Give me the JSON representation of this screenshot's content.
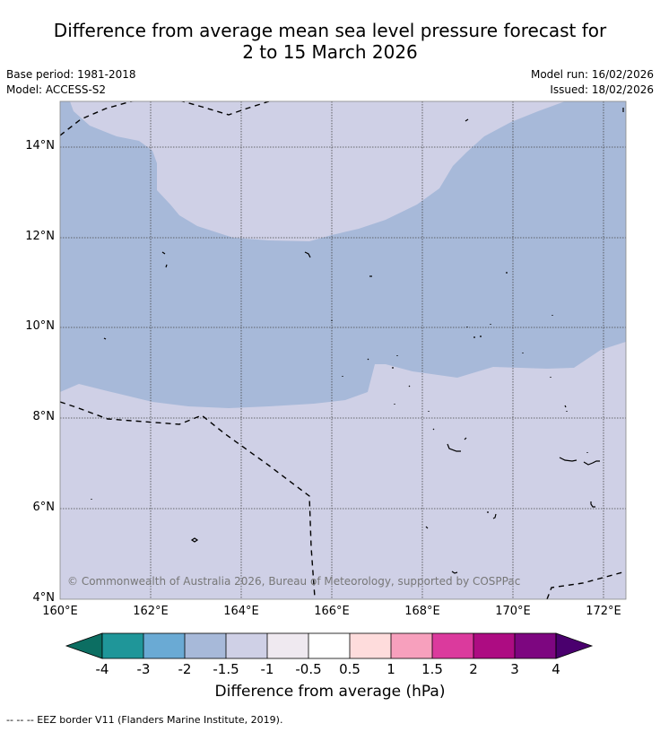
{
  "title": {
    "line1": "Difference from average mean sea level pressure forecast for",
    "line2": "2 to 15 March 2026"
  },
  "meta": {
    "base_period": "Base period: 1981-2018",
    "model": "Model: ACCESS-S2",
    "model_run": "Model run: 16/02/2026",
    "issued": "Issued: 18/02/2026"
  },
  "map": {
    "lat_labels": [
      "14°N",
      "12°N",
      "10°N",
      "8°N",
      "6°N",
      "4°N"
    ],
    "lon_labels": [
      "160°E",
      "162°E",
      "164°E",
      "166°E",
      "168°E",
      "170°E",
      "172°E"
    ],
    "copyright": "© Commonwealth of Australia 2026, Bureau of Meteorology, supported by COSPPac",
    "colors": {
      "band_-1.5_-1": "#a7b9d9",
      "band_-1_-0.5": "#cfd0e6",
      "border": "#000000"
    }
  },
  "colorbar": {
    "title": "Difference from average (hPa)",
    "labels": [
      "-4",
      "-3",
      "-2",
      "-1.5",
      "-1",
      "-0.5",
      "0.5",
      "1",
      "1.5",
      "2",
      "3",
      "4"
    ],
    "colors": [
      "#0c6e62",
      "#1f9699",
      "#6aaad4",
      "#a7b9d9",
      "#cfd0e6",
      "#efe9f0",
      "#ffffff",
      "#fedcdc",
      "#f7a0bd",
      "#db3a9d",
      "#ad0c82",
      "#7d0680",
      "#4a006e"
    ]
  },
  "footnote": "--  --  -- EEZ border V11 (Flanders Marine Institute, 2019)."
}
